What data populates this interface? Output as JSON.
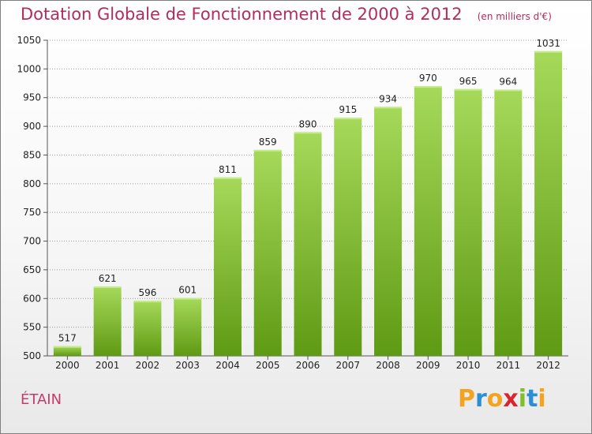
{
  "title": "Dotation Globale de Fonctionnement de 2000 à 2012",
  "subtitle": "(en milliers d'€)",
  "commune": "ÉTAIN",
  "logo": {
    "letters": [
      "P",
      "r",
      "o",
      "x",
      "i",
      "t",
      "i"
    ],
    "colors": [
      "#f4a321",
      "#2c8fd6",
      "#f4a321",
      "#d7262e",
      "#7fbf2a",
      "#2c8fd6",
      "#f4a321"
    ]
  },
  "colors": {
    "bar_light": "#a6d95a",
    "bar_dark": "#5f9a14",
    "title": "#b02d5d",
    "grid": "#9a9a9a"
  },
  "chart_data": {
    "type": "bar",
    "categories": [
      "2000",
      "2001",
      "2002",
      "2003",
      "2004",
      "2005",
      "2006",
      "2007",
      "2008",
      "2009",
      "2010",
      "2011",
      "2012"
    ],
    "values": [
      517,
      621,
      596,
      601,
      811,
      859,
      890,
      915,
      934,
      970,
      965,
      964,
      1031
    ],
    "value_labels": [
      "517",
      "621",
      "596",
      "601",
      "811",
      "859",
      "890",
      "915",
      "934",
      "970",
      "965",
      "964",
      "1031"
    ],
    "y_ticks": [
      "500",
      "550",
      "600",
      "650",
      "700",
      "750",
      "800",
      "850",
      "900",
      "950",
      "1000",
      "1050"
    ],
    "ylim": [
      500,
      1050
    ],
    "grid": true,
    "xlabel": "",
    "ylabel": ""
  }
}
